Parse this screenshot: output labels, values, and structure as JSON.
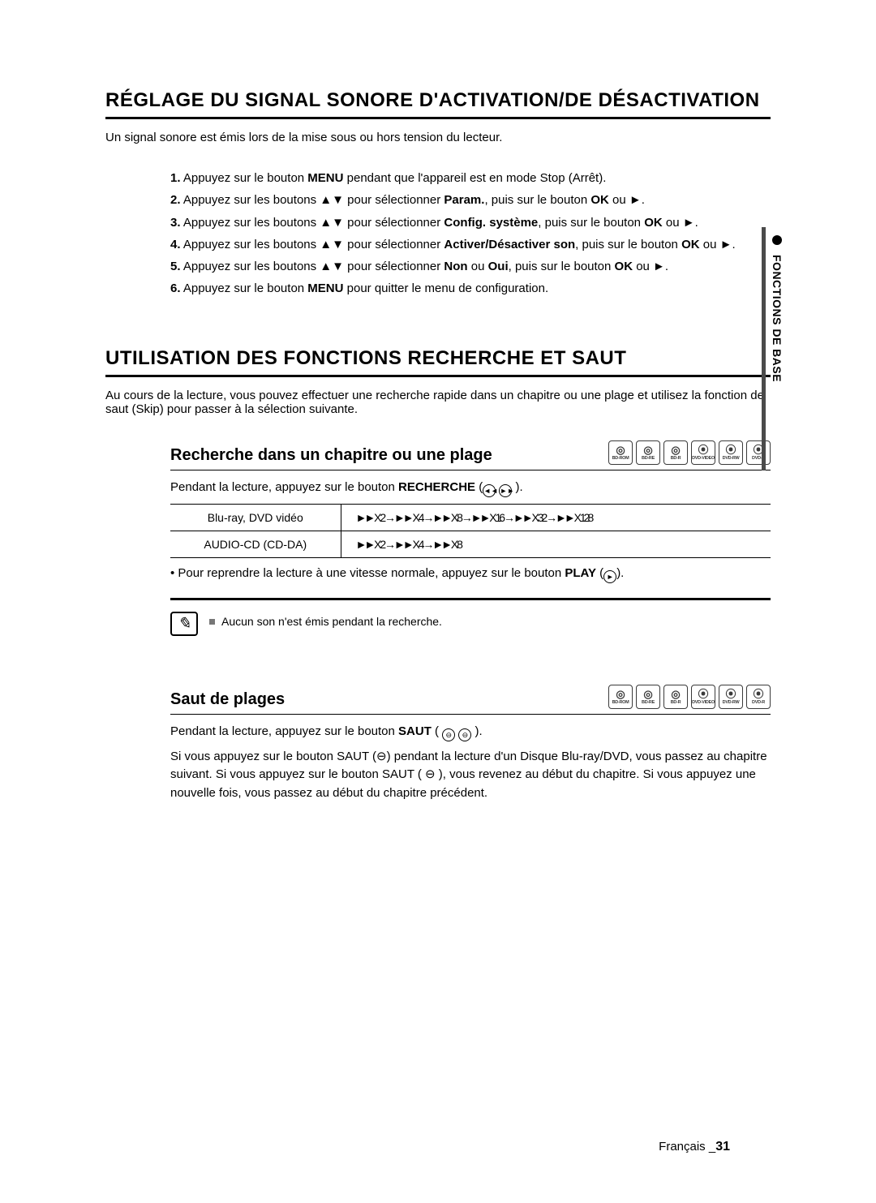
{
  "side": {
    "label": "FONCTIONS DE BASE"
  },
  "section1": {
    "title": "RÉGLAGE DU SIGNAL SONORE D'ACTIVATION/DE DÉSACTIVATION",
    "intro": "Un signal sonore est émis lors de la mise sous ou hors tension du lecteur.",
    "steps": [
      {
        "n": "1.",
        "pre": "Appuyez sur le bouton ",
        "b1": "MENU",
        "post": " pendant que l'appareil est en mode Stop (Arrêt)."
      },
      {
        "n": "2.",
        "pre": "Appuyez sur les boutons ▲▼ pour sélectionner ",
        "b1": "Param.",
        "mid": ", puis sur le bouton ",
        "b2": "OK",
        "post": " ou ►."
      },
      {
        "n": "3.",
        "pre": "Appuyez sur les boutons ▲▼ pour sélectionner ",
        "b1": "Config. système",
        "mid": ", puis sur le bouton ",
        "b2": "OK",
        "post": " ou ►."
      },
      {
        "n": "4.",
        "pre": "Appuyez sur les boutons ▲▼ pour sélectionner ",
        "b1": "Activer/Désactiver son",
        "mid": ", puis sur le bouton ",
        "b2": "OK",
        "post": " ou ►."
      },
      {
        "n": "5.",
        "pre": "Appuyez sur les boutons ▲▼ pour sélectionner ",
        "b1": "Non",
        "mid": " ou ",
        "b2": "Oui",
        "mid2": ", puis sur le bouton ",
        "b3": "OK",
        "post": " ou ►."
      },
      {
        "n": "6.",
        "pre": "Appuyez sur le bouton ",
        "b1": "MENU",
        "post": " pour quitter le menu de configuration."
      }
    ]
  },
  "section2": {
    "title": "UTILISATION DES FONCTIONS RECHERCHE ET SAUT",
    "intro": "Au cours de la lecture, vous pouvez effectuer une recherche rapide dans un chapitre ou une plage et utilisez la fonction de saut (Skip) pour passer à la sélection suivante.",
    "sub1": {
      "heading": "Recherche dans un chapitre ou une plage",
      "line1_pre": "Pendant la lecture, appuyez sur le bouton ",
      "line1_bold": "RECHERCHE",
      "line1_post": " (",
      "table": {
        "row1_label": "Blu-ray, DVD vidéo",
        "row1_val": "►► X 2 → ►► X 4 → ►► X 8 → ►► X 16 → ►► X 32 → ►► X 128",
        "row2_label": "AUDIO-CD (CD-DA)",
        "row2_val": "►► X 2 → ►► X 4 → ►► X 8"
      },
      "bullet": "• Pour reprendre la lecture à une vitesse normale, appuyez sur le bouton ",
      "bullet_bold": "PLAY",
      "note": "Aucun son n'est émis pendant la recherche."
    },
    "sub2": {
      "heading": "Saut de plages",
      "line1_pre": "Pendant la lecture, appuyez sur le bouton ",
      "line1_bold": "SAUT",
      "para": "Si vous appuyez sur le bouton SAUT (⊖) pendant la lecture d'un Disque Blu-ray/DVD, vous passez au chapitre suivant. Si vous appuyez sur le bouton SAUT ( ⊖ ), vous revenez au début du chapitre. Si vous appuyez une nouvelle fois, vous passez au début du chapitre précédent."
    }
  },
  "badges": [
    "BD-ROM",
    "BD-RE",
    "BD-R",
    "DVD-VIDEO",
    "DVD-RW",
    "DVD-R"
  ],
  "footer": {
    "lang": "Français",
    "sep": " _",
    "page": "31"
  }
}
